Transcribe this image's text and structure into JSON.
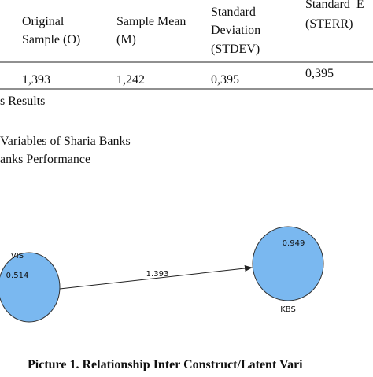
{
  "table": {
    "header": [
      [
        "Original",
        "Sample (O)"
      ],
      [
        "Sample Mean",
        "(M)"
      ],
      [
        "Standard",
        "Deviation",
        "(STDEV)"
      ],
      [
        "Standard  E",
        "(STERR)"
      ]
    ],
    "rows": [
      [
        "1,393",
        "1,242",
        "0,395",
        "0,395"
      ]
    ]
  },
  "text": [
    "s Results",
    "Variables of Sharia Banks",
    "anks Performance"
  ],
  "diagram": {
    "nodes": [
      {
        "label": "VIS",
        "value": "0.514"
      },
      {
        "label": "KBS",
        "value": "0.949"
      }
    ],
    "edges": [
      {
        "label": "1.393"
      }
    ]
  },
  "caption": "Picture 1. Relationship Inter Construct/Latent Vari"
}
